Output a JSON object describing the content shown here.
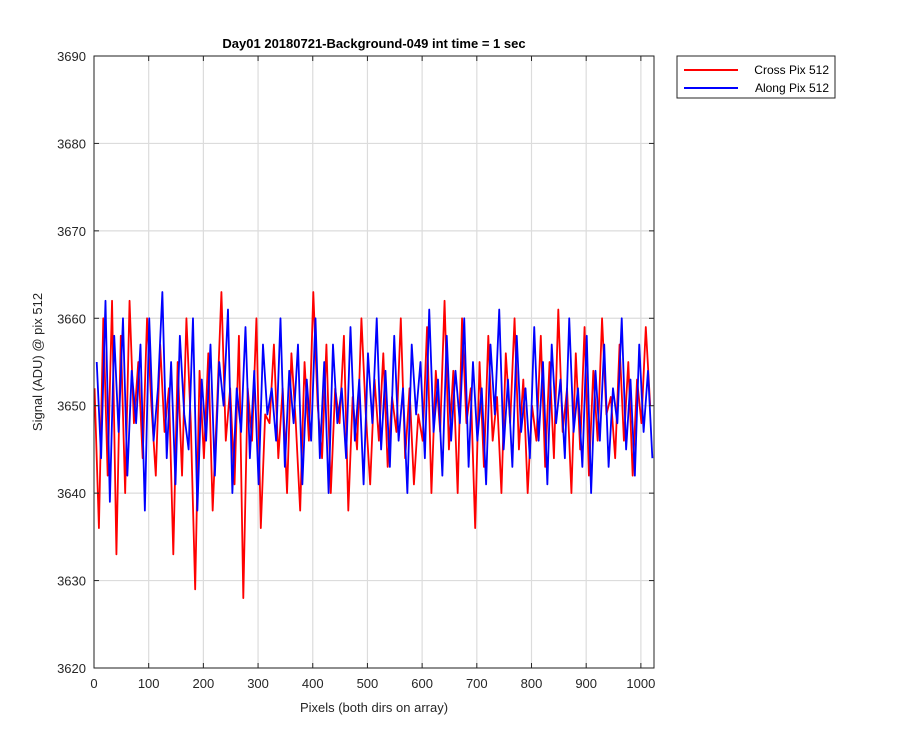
{
  "chart_data": {
    "type": "line",
    "title": "Day01 20180721-Background-049 int time = 1 sec",
    "xlabel": "Pixels (both dirs on array)",
    "ylabel": "Signal (ADU) @ pix 512",
    "xlim": [
      0,
      1024
    ],
    "ylim": [
      3620,
      3690
    ],
    "xticks": [
      0,
      100,
      200,
      300,
      400,
      500,
      600,
      700,
      800,
      900,
      1000
    ],
    "yticks": [
      3620,
      3630,
      3640,
      3650,
      3660,
      3670,
      3680,
      3690
    ],
    "xtick_labels": [
      "0",
      "100",
      "200",
      "300",
      "400",
      "500",
      "600",
      "700",
      "800",
      "900",
      "1000"
    ],
    "ytick_labels": [
      "3620",
      "3630",
      "3640",
      "3650",
      "3660",
      "3670",
      "3680",
      "3690"
    ],
    "grid": true,
    "legend_position": "outside-top-right",
    "series": [
      {
        "name": "Cross Pix 512",
        "color": "#ff0000",
        "x_start": 1,
        "x_step": 8,
        "values": [
          3652,
          3636,
          3660,
          3642,
          3662,
          3633,
          3658,
          3640,
          3662,
          3648,
          3655,
          3644,
          3660,
          3650,
          3642,
          3657,
          3647,
          3652,
          3633,
          3655,
          3642,
          3660,
          3648,
          3629,
          3654,
          3644,
          3656,
          3638,
          3650,
          3663,
          3646,
          3652,
          3641,
          3658,
          3628,
          3652,
          3646,
          3660,
          3636,
          3649,
          3648,
          3657,
          3644,
          3652,
          3640,
          3656,
          3648,
          3638,
          3655,
          3646,
          3663,
          3650,
          3644,
          3657,
          3640,
          3652,
          3648,
          3658,
          3638,
          3651,
          3645,
          3660,
          3649,
          3641,
          3653,
          3646,
          3656,
          3643,
          3651,
          3647,
          3660,
          3644,
          3652,
          3641,
          3649,
          3646,
          3659,
          3640,
          3654,
          3647,
          3662,
          3645,
          3654,
          3640,
          3660,
          3648,
          3652,
          3636,
          3655,
          3643,
          3658,
          3646,
          3651,
          3640,
          3656,
          3648,
          3660,
          3645,
          3653,
          3640,
          3650,
          3646,
          3658,
          3643,
          3655,
          3644,
          3661,
          3647,
          3652,
          3640,
          3656,
          3645,
          3659,
          3642,
          3654,
          3646,
          3660,
          3649,
          3651,
          3644,
          3657,
          3646,
          3655,
          3642,
          3653,
          3648,
          3659,
          3650
        ]
      },
      {
        "name": "Along Pix 512",
        "color": "#0000ff",
        "x_start": 5,
        "x_step": 8,
        "values": [
          3655,
          3644,
          3662,
          3639,
          3658,
          3647,
          3660,
          3642,
          3654,
          3648,
          3657,
          3638,
          3660,
          3646,
          3652,
          3663,
          3644,
          3655,
          3641,
          3658,
          3649,
          3645,
          3660,
          3638,
          3653,
          3646,
          3657,
          3642,
          3655,
          3650,
          3661,
          3640,
          3652,
          3647,
          3659,
          3644,
          3654,
          3641,
          3657,
          3649,
          3652,
          3646,
          3660,
          3643,
          3654,
          3648,
          3657,
          3641,
          3653,
          3646,
          3660,
          3644,
          3655,
          3640,
          3657,
          3648,
          3652,
          3644,
          3659,
          3646,
          3653,
          3641,
          3656,
          3648,
          3660,
          3645,
          3654,
          3643,
          3658,
          3646,
          3652,
          3640,
          3657,
          3649,
          3655,
          3644,
          3661,
          3647,
          3653,
          3642,
          3658,
          3646,
          3654,
          3648,
          3660,
          3643,
          3655,
          3646,
          3652,
          3641,
          3657,
          3649,
          3661,
          3645,
          3653,
          3643,
          3658,
          3647,
          3652,
          3644,
          3659,
          3646,
          3655,
          3641,
          3657,
          3648,
          3653,
          3644,
          3660,
          3647,
          3652,
          3643,
          3658,
          3640,
          3654,
          3646,
          3657,
          3643,
          3652,
          3648,
          3660,
          3645,
          3653,
          3642,
          3657,
          3647,
          3654,
          3644
        ]
      }
    ]
  }
}
